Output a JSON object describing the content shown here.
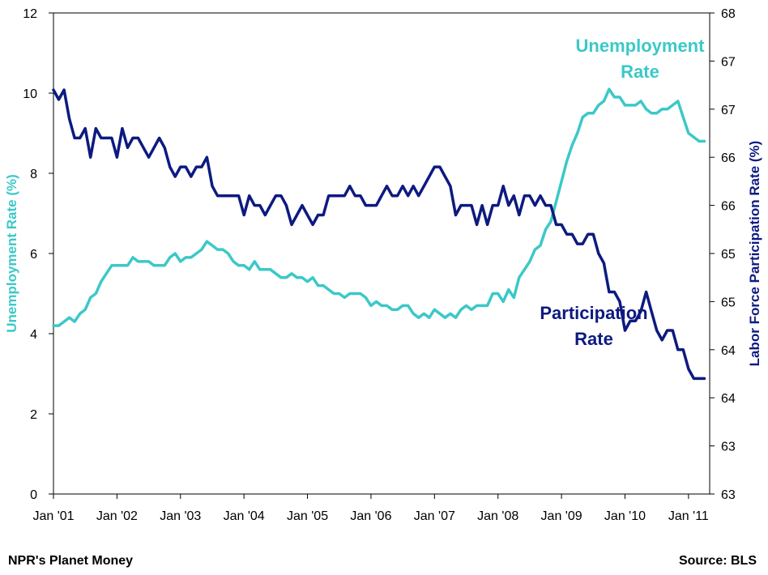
{
  "chart_data": {
    "type": "line",
    "title": "",
    "x_tick_labels": [
      "Jan '01",
      "Jan '02",
      "Jan '03",
      "Jan '04",
      "Jan '05",
      "Jan '06",
      "Jan '07",
      "Jan '08",
      "Jan '09",
      "Jan '10",
      "Jan '11"
    ],
    "x_range": [
      "2001-01",
      "2011-05"
    ],
    "y_left": {
      "label": "Unemployment Rate (%)",
      "range": [
        0,
        12
      ],
      "ticks": [
        "0",
        "2",
        "4",
        "6",
        "8",
        "10",
        "12"
      ]
    },
    "y_right": {
      "label": "Labor Force Participation Rate (%)",
      "range": [
        63,
        68
      ],
      "ticks": [
        "63",
        "63",
        "64",
        "64",
        "65",
        "65",
        "66",
        "66",
        "67",
        "67",
        "68"
      ]
    },
    "grid": false,
    "series": [
      {
        "name": "Unemployment Rate",
        "label_lines": [
          "Unemployment",
          "Rate"
        ],
        "axis": "left",
        "color": "#3cc8c8",
        "points": [
          [
            "2001-01",
            4.2
          ],
          [
            "2001-02",
            4.2
          ],
          [
            "2001-03",
            4.3
          ],
          [
            "2001-04",
            4.4
          ],
          [
            "2001-05",
            4.3
          ],
          [
            "2001-06",
            4.5
          ],
          [
            "2001-07",
            4.6
          ],
          [
            "2001-08",
            4.9
          ],
          [
            "2001-09",
            5.0
          ],
          [
            "2001-10",
            5.3
          ],
          [
            "2001-11",
            5.5
          ],
          [
            "2001-12",
            5.7
          ],
          [
            "2002-01",
            5.7
          ],
          [
            "2002-02",
            5.7
          ],
          [
            "2002-03",
            5.7
          ],
          [
            "2002-04",
            5.9
          ],
          [
            "2002-05",
            5.8
          ],
          [
            "2002-06",
            5.8
          ],
          [
            "2002-07",
            5.8
          ],
          [
            "2002-08",
            5.7
          ],
          [
            "2002-09",
            5.7
          ],
          [
            "2002-10",
            5.7
          ],
          [
            "2002-11",
            5.9
          ],
          [
            "2002-12",
            6.0
          ],
          [
            "2003-01",
            5.8
          ],
          [
            "2003-02",
            5.9
          ],
          [
            "2003-03",
            5.9
          ],
          [
            "2003-04",
            6.0
          ],
          [
            "2003-05",
            6.1
          ],
          [
            "2003-06",
            6.3
          ],
          [
            "2003-07",
            6.2
          ],
          [
            "2003-08",
            6.1
          ],
          [
            "2003-09",
            6.1
          ],
          [
            "2003-10",
            6.0
          ],
          [
            "2003-11",
            5.8
          ],
          [
            "2003-12",
            5.7
          ],
          [
            "2004-01",
            5.7
          ],
          [
            "2004-02",
            5.6
          ],
          [
            "2004-03",
            5.8
          ],
          [
            "2004-04",
            5.6
          ],
          [
            "2004-05",
            5.6
          ],
          [
            "2004-06",
            5.6
          ],
          [
            "2004-07",
            5.5
          ],
          [
            "2004-08",
            5.4
          ],
          [
            "2004-09",
            5.4
          ],
          [
            "2004-10",
            5.5
          ],
          [
            "2004-11",
            5.4
          ],
          [
            "2004-12",
            5.4
          ],
          [
            "2005-01",
            5.3
          ],
          [
            "2005-02",
            5.4
          ],
          [
            "2005-03",
            5.2
          ],
          [
            "2005-04",
            5.2
          ],
          [
            "2005-05",
            5.1
          ],
          [
            "2005-06",
            5.0
          ],
          [
            "2005-07",
            5.0
          ],
          [
            "2005-08",
            4.9
          ],
          [
            "2005-09",
            5.0
          ],
          [
            "2005-10",
            5.0
          ],
          [
            "2005-11",
            5.0
          ],
          [
            "2005-12",
            4.9
          ],
          [
            "2006-01",
            4.7
          ],
          [
            "2006-02",
            4.8
          ],
          [
            "2006-03",
            4.7
          ],
          [
            "2006-04",
            4.7
          ],
          [
            "2006-05",
            4.6
          ],
          [
            "2006-06",
            4.6
          ],
          [
            "2006-07",
            4.7
          ],
          [
            "2006-08",
            4.7
          ],
          [
            "2006-09",
            4.5
          ],
          [
            "2006-10",
            4.4
          ],
          [
            "2006-11",
            4.5
          ],
          [
            "2006-12",
            4.4
          ],
          [
            "2007-01",
            4.6
          ],
          [
            "2007-02",
            4.5
          ],
          [
            "2007-03",
            4.4
          ],
          [
            "2007-04",
            4.5
          ],
          [
            "2007-05",
            4.4
          ],
          [
            "2007-06",
            4.6
          ],
          [
            "2007-07",
            4.7
          ],
          [
            "2007-08",
            4.6
          ],
          [
            "2007-09",
            4.7
          ],
          [
            "2007-10",
            4.7
          ],
          [
            "2007-11",
            4.7
          ],
          [
            "2007-12",
            5.0
          ],
          [
            "2008-01",
            5.0
          ],
          [
            "2008-02",
            4.8
          ],
          [
            "2008-03",
            5.1
          ],
          [
            "2008-04",
            4.9
          ],
          [
            "2008-05",
            5.4
          ],
          [
            "2008-06",
            5.6
          ],
          [
            "2008-07",
            5.8
          ],
          [
            "2008-08",
            6.1
          ],
          [
            "2008-09",
            6.2
          ],
          [
            "2008-10",
            6.6
          ],
          [
            "2008-11",
            6.8
          ],
          [
            "2008-12",
            7.3
          ],
          [
            "2009-01",
            7.8
          ],
          [
            "2009-02",
            8.3
          ],
          [
            "2009-03",
            8.7
          ],
          [
            "2009-04",
            9.0
          ],
          [
            "2009-05",
            9.4
          ],
          [
            "2009-06",
            9.5
          ],
          [
            "2009-07",
            9.5
          ],
          [
            "2009-08",
            9.7
          ],
          [
            "2009-09",
            9.8
          ],
          [
            "2009-10",
            10.1
          ],
          [
            "2009-11",
            9.9
          ],
          [
            "2009-12",
            9.9
          ],
          [
            "2010-01",
            9.7
          ],
          [
            "2010-02",
            9.7
          ],
          [
            "2010-03",
            9.7
          ],
          [
            "2010-04",
            9.8
          ],
          [
            "2010-05",
            9.6
          ],
          [
            "2010-06",
            9.5
          ],
          [
            "2010-07",
            9.5
          ],
          [
            "2010-08",
            9.6
          ],
          [
            "2010-09",
            9.6
          ],
          [
            "2010-10",
            9.7
          ],
          [
            "2010-11",
            9.8
          ],
          [
            "2010-12",
            9.4
          ],
          [
            "2011-01",
            9.0
          ],
          [
            "2011-02",
            8.9
          ],
          [
            "2011-03",
            8.8
          ],
          [
            "2011-04",
            8.8
          ]
        ]
      },
      {
        "name": "Participation Rate",
        "label_lines": [
          "Participation",
          "Rate"
        ],
        "axis": "right",
        "color": "#0d1a80",
        "points": [
          [
            "2001-01",
            67.2
          ],
          [
            "2001-02",
            67.1
          ],
          [
            "2001-03",
            67.2
          ],
          [
            "2001-04",
            66.9
          ],
          [
            "2001-05",
            66.7
          ],
          [
            "2001-06",
            66.7
          ],
          [
            "2001-07",
            66.8
          ],
          [
            "2001-08",
            66.5
          ],
          [
            "2001-09",
            66.8
          ],
          [
            "2001-10",
            66.7
          ],
          [
            "2001-11",
            66.7
          ],
          [
            "2001-12",
            66.7
          ],
          [
            "2002-01",
            66.5
          ],
          [
            "2002-02",
            66.8
          ],
          [
            "2002-03",
            66.6
          ],
          [
            "2002-04",
            66.7
          ],
          [
            "2002-05",
            66.7
          ],
          [
            "2002-06",
            66.6
          ],
          [
            "2002-07",
            66.5
          ],
          [
            "2002-08",
            66.6
          ],
          [
            "2002-09",
            66.7
          ],
          [
            "2002-10",
            66.6
          ],
          [
            "2002-11",
            66.4
          ],
          [
            "2002-12",
            66.3
          ],
          [
            "2003-01",
            66.4
          ],
          [
            "2003-02",
            66.4
          ],
          [
            "2003-03",
            66.3
          ],
          [
            "2003-04",
            66.4
          ],
          [
            "2003-05",
            66.4
          ],
          [
            "2003-06",
            66.5
          ],
          [
            "2003-07",
            66.2
          ],
          [
            "2003-08",
            66.1
          ],
          [
            "2003-09",
            66.1
          ],
          [
            "2003-10",
            66.1
          ],
          [
            "2003-11",
            66.1
          ],
          [
            "2003-12",
            66.1
          ],
          [
            "2004-01",
            65.9
          ],
          [
            "2004-02",
            66.1
          ],
          [
            "2004-03",
            66.0
          ],
          [
            "2004-04",
            66.0
          ],
          [
            "2004-05",
            65.9
          ],
          [
            "2004-06",
            66.0
          ],
          [
            "2004-07",
            66.1
          ],
          [
            "2004-08",
            66.1
          ],
          [
            "2004-09",
            66.0
          ],
          [
            "2004-10",
            65.8
          ],
          [
            "2004-11",
            65.9
          ],
          [
            "2004-12",
            66.0
          ],
          [
            "2005-01",
            65.9
          ],
          [
            "2005-02",
            65.8
          ],
          [
            "2005-03",
            65.9
          ],
          [
            "2005-04",
            65.9
          ],
          [
            "2005-05",
            66.1
          ],
          [
            "2005-06",
            66.1
          ],
          [
            "2005-07",
            66.1
          ],
          [
            "2005-08",
            66.1
          ],
          [
            "2005-09",
            66.2
          ],
          [
            "2005-10",
            66.1
          ],
          [
            "2005-11",
            66.1
          ],
          [
            "2005-12",
            66.0
          ],
          [
            "2006-01",
            66.0
          ],
          [
            "2006-02",
            66.0
          ],
          [
            "2006-03",
            66.1
          ],
          [
            "2006-04",
            66.2
          ],
          [
            "2006-05",
            66.1
          ],
          [
            "2006-06",
            66.1
          ],
          [
            "2006-07",
            66.2
          ],
          [
            "2006-08",
            66.1
          ],
          [
            "2006-09",
            66.2
          ],
          [
            "2006-10",
            66.1
          ],
          [
            "2006-11",
            66.2
          ],
          [
            "2006-12",
            66.3
          ],
          [
            "2007-01",
            66.4
          ],
          [
            "2007-02",
            66.4
          ],
          [
            "2007-03",
            66.3
          ],
          [
            "2007-04",
            66.2
          ],
          [
            "2007-05",
            65.9
          ],
          [
            "2007-06",
            66.0
          ],
          [
            "2007-07",
            66.0
          ],
          [
            "2007-08",
            66.0
          ],
          [
            "2007-09",
            65.8
          ],
          [
            "2007-10",
            66.0
          ],
          [
            "2007-11",
            65.8
          ],
          [
            "2007-12",
            66.0
          ],
          [
            "2008-01",
            66.0
          ],
          [
            "2008-02",
            66.2
          ],
          [
            "2008-03",
            66.0
          ],
          [
            "2008-04",
            66.1
          ],
          [
            "2008-05",
            65.9
          ],
          [
            "2008-06",
            66.1
          ],
          [
            "2008-07",
            66.1
          ],
          [
            "2008-08",
            66.0
          ],
          [
            "2008-09",
            66.1
          ],
          [
            "2008-10",
            66.0
          ],
          [
            "2008-11",
            66.0
          ],
          [
            "2008-12",
            65.8
          ],
          [
            "2009-01",
            65.8
          ],
          [
            "2009-02",
            65.7
          ],
          [
            "2009-03",
            65.7
          ],
          [
            "2009-04",
            65.6
          ],
          [
            "2009-05",
            65.6
          ],
          [
            "2009-06",
            65.7
          ],
          [
            "2009-07",
            65.7
          ],
          [
            "2009-08",
            65.5
          ],
          [
            "2009-09",
            65.4
          ],
          [
            "2009-10",
            65.1
          ],
          [
            "2009-11",
            65.1
          ],
          [
            "2009-12",
            65.0
          ],
          [
            "2010-01",
            64.7
          ],
          [
            "2010-02",
            64.8
          ],
          [
            "2010-03",
            64.8
          ],
          [
            "2010-04",
            64.9
          ],
          [
            "2010-05",
            65.1
          ],
          [
            "2010-06",
            64.9
          ],
          [
            "2010-07",
            64.7
          ],
          [
            "2010-08",
            64.6
          ],
          [
            "2010-09",
            64.7
          ],
          [
            "2010-10",
            64.7
          ],
          [
            "2010-11",
            64.5
          ],
          [
            "2010-12",
            64.5
          ],
          [
            "2011-01",
            64.3
          ],
          [
            "2011-02",
            64.2
          ],
          [
            "2011-03",
            64.2
          ],
          [
            "2011-04",
            64.2
          ]
        ]
      }
    ],
    "footer_left": "NPR's Planet Money",
    "footer_right": "Source: BLS"
  }
}
